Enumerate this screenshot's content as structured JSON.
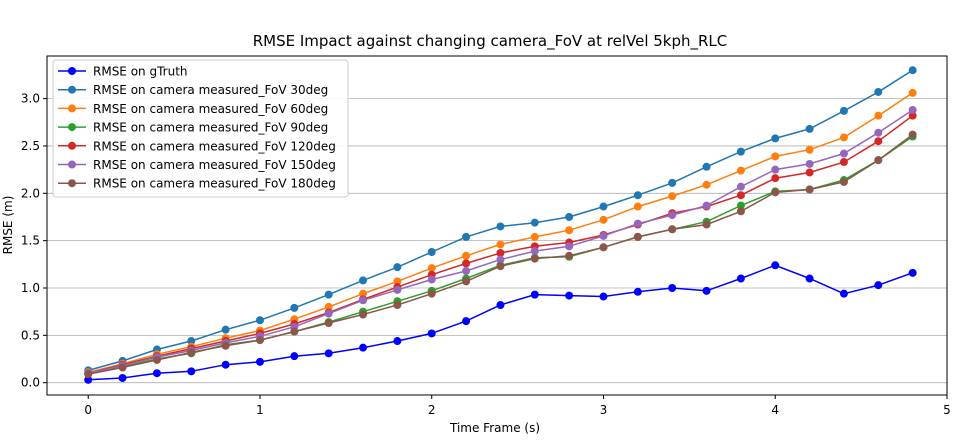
{
  "chart_data": {
    "type": "line",
    "title": "RMSE Impact against changing camera_FoV at relVel 5kph_RLC",
    "xlabel": "Time Frame (s)",
    "ylabel": "RMSE (m)",
    "xlim": [
      -0.24,
      5.0
    ],
    "ylim": [
      -0.13,
      3.45
    ],
    "xticks": [
      0,
      1,
      2,
      3,
      4,
      5
    ],
    "xtick_labels": [
      "0",
      "1",
      "2",
      "3",
      "4",
      "5"
    ],
    "yticks": [
      0.0,
      0.5,
      1.0,
      1.5,
      2.0,
      2.5,
      3.0
    ],
    "ytick_labels": [
      "0.0",
      "0.5",
      "1.0",
      "1.5",
      "2.0",
      "2.5",
      "3.0"
    ],
    "grid": "y",
    "legend_position": "top-left",
    "x": [
      0,
      0.2,
      0.4,
      0.6,
      0.8,
      1.0,
      1.2,
      1.4,
      1.6,
      1.8,
      2.0,
      2.2,
      2.4,
      2.6,
      2.8,
      3.0,
      3.2,
      3.4,
      3.6,
      3.8,
      4.0,
      4.2,
      4.4,
      4.6,
      4.8
    ],
    "series": [
      {
        "name": "RMSE on gTruth",
        "color": "#0000ff",
        "values": [
          0.03,
          0.05,
          0.1,
          0.12,
          0.19,
          0.22,
          0.28,
          0.31,
          0.37,
          0.44,
          0.52,
          0.65,
          0.82,
          0.93,
          0.92,
          0.91,
          0.96,
          1.0,
          0.97,
          1.1,
          1.24,
          1.1,
          0.94,
          1.03,
          1.16
        ]
      },
      {
        "name": "RMSE on camera measured_FoV 30deg",
        "color": "#1f77b4",
        "values": [
          0.13,
          0.23,
          0.35,
          0.44,
          0.56,
          0.66,
          0.79,
          0.93,
          1.08,
          1.22,
          1.38,
          1.54,
          1.65,
          1.69,
          1.75,
          1.86,
          1.98,
          2.11,
          2.28,
          2.44,
          2.58,
          2.68,
          2.87,
          3.07,
          3.3
        ]
      },
      {
        "name": "RMSE on camera measured_FoV 60deg",
        "color": "#ff7f0e",
        "values": [
          0.11,
          0.2,
          0.3,
          0.38,
          0.47,
          0.55,
          0.67,
          0.8,
          0.94,
          1.07,
          1.21,
          1.34,
          1.46,
          1.54,
          1.61,
          1.72,
          1.86,
          1.97,
          2.09,
          2.24,
          2.39,
          2.46,
          2.59,
          2.82,
          3.06
        ]
      },
      {
        "name": "RMSE on camera measured_FoV 90deg",
        "color": "#2ca02c",
        "values": [
          0.09,
          0.17,
          0.25,
          0.31,
          0.4,
          0.45,
          0.54,
          0.64,
          0.75,
          0.86,
          0.97,
          1.1,
          1.24,
          1.32,
          1.33,
          1.43,
          1.54,
          1.62,
          1.7,
          1.87,
          2.02,
          2.04,
          2.14,
          2.35,
          2.6
        ]
      },
      {
        "name": "RMSE on camera measured_FoV 120deg",
        "color": "#d62728",
        "values": [
          0.1,
          0.19,
          0.28,
          0.36,
          0.44,
          0.52,
          0.62,
          0.74,
          0.88,
          1.01,
          1.14,
          1.26,
          1.37,
          1.44,
          1.48,
          1.56,
          1.67,
          1.79,
          1.86,
          1.98,
          2.16,
          2.22,
          2.33,
          2.55,
          2.82
        ]
      },
      {
        "name": "RMSE on camera measured_FoV 150deg",
        "color": "#9467bd",
        "values": [
          0.1,
          0.18,
          0.27,
          0.34,
          0.42,
          0.49,
          0.59,
          0.73,
          0.87,
          0.98,
          1.09,
          1.18,
          1.3,
          1.39,
          1.44,
          1.55,
          1.68,
          1.77,
          1.87,
          2.07,
          2.25,
          2.31,
          2.42,
          2.64,
          2.88
        ]
      },
      {
        "name": "RMSE on camera measured_FoV 180deg",
        "color": "#8c564b",
        "values": [
          0.09,
          0.16,
          0.24,
          0.32,
          0.39,
          0.45,
          0.54,
          0.63,
          0.72,
          0.82,
          0.94,
          1.07,
          1.23,
          1.31,
          1.34,
          1.43,
          1.54,
          1.62,
          1.67,
          1.81,
          2.01,
          2.04,
          2.12,
          2.35,
          2.62
        ]
      }
    ]
  }
}
